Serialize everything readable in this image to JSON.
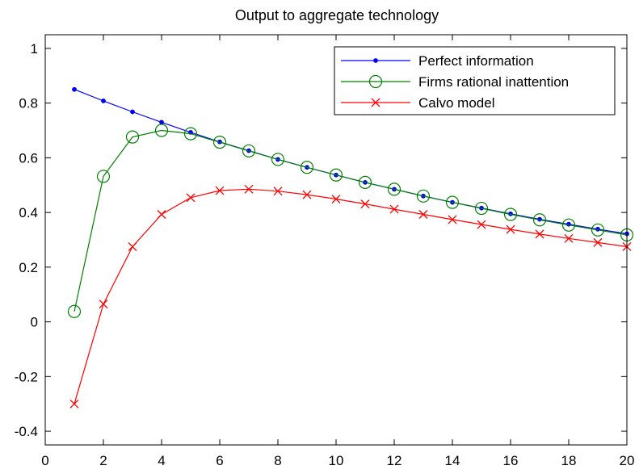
{
  "chart_data": {
    "type": "line",
    "title": "Output to aggregate technology",
    "xlabel": "",
    "ylabel": "",
    "xlim": [
      0,
      20
    ],
    "ylim": [
      -0.45,
      1.05
    ],
    "xticks": [
      0,
      2,
      4,
      6,
      8,
      10,
      12,
      14,
      16,
      18,
      20
    ],
    "xtick_labels": [
      "0",
      "2",
      "4",
      "6",
      "8",
      "10",
      "12",
      "14",
      "16",
      "18",
      "20"
    ],
    "yticks": [
      -0.4,
      -0.2,
      0,
      0.2,
      0.4,
      0.6,
      0.8,
      1
    ],
    "ytick_labels": [
      "-0.4",
      "-0.2",
      "0",
      "0.2",
      "0.4",
      "0.6",
      "0.8",
      "1"
    ],
    "grid": false,
    "legend_position": "top-right",
    "x": [
      1,
      2,
      3,
      4,
      5,
      6,
      7,
      8,
      9,
      10,
      11,
      12,
      13,
      14,
      15,
      16,
      17,
      18,
      19,
      20
    ],
    "series": [
      {
        "name": "Perfect information",
        "color": "#0000ff",
        "marker": "dot",
        "values": [
          0.85,
          0.808,
          0.768,
          0.73,
          0.693,
          0.658,
          0.626,
          0.594,
          0.565,
          0.537,
          0.51,
          0.485,
          0.46,
          0.437,
          0.416,
          0.395,
          0.375,
          0.357,
          0.339,
          0.322
        ]
      },
      {
        "name": "Firms rational inattention",
        "color": "#008000",
        "marker": "circle",
        "values": [
          0.038,
          0.532,
          0.676,
          0.7,
          0.688,
          0.657,
          0.625,
          0.594,
          0.565,
          0.537,
          0.51,
          0.485,
          0.46,
          0.437,
          0.415,
          0.393,
          0.373,
          0.354,
          0.336,
          0.318
        ]
      },
      {
        "name": "Calvo model",
        "color": "#ff0000",
        "marker": "x",
        "values": [
          -0.3,
          0.065,
          0.275,
          0.393,
          0.454,
          0.48,
          0.485,
          0.478,
          0.465,
          0.449,
          0.431,
          0.412,
          0.393,
          0.374,
          0.356,
          0.338,
          0.321,
          0.305,
          0.29,
          0.275
        ]
      }
    ]
  }
}
